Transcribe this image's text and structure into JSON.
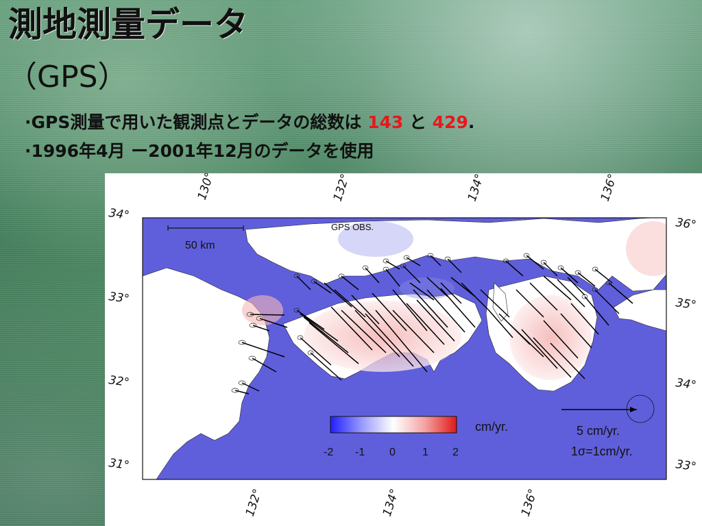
{
  "slide": {
    "title": "測地測量データ",
    "subtitle": "（GPS）",
    "bullet1": {
      "prefix": "·GPS測量で用いた観測点とデータの総数は ",
      "num1": "143",
      "mid": " と ",
      "num2": "429",
      "suffix": "."
    },
    "bullet2": "·1996年4月 ー2001年12月のデータを使用"
  },
  "map": {
    "label": "GPS OBS.",
    "scale_bar": "50 km",
    "top_lon_ticks": [
      "130°",
      "132°",
      "134°",
      "136°"
    ],
    "bottom_lon_ticks": [
      "132°",
      "134°",
      "136°"
    ],
    "left_lat_ticks": [
      "34°",
      "33°",
      "32°",
      "31°"
    ],
    "right_lat_ticks": [
      "36°",
      "35°",
      "34°",
      "33°"
    ],
    "colorbar": {
      "unit": "cm/yr.",
      "ticks": [
        "-2",
        "-1",
        "0",
        "1",
        "2"
      ],
      "range": [
        -2,
        2
      ]
    },
    "legend": {
      "arrow_label": "5 cm/yr.",
      "sigma_label": "1σ=1cm/yr."
    },
    "colors": {
      "sea": "#5f5fdc",
      "land": "#ffffff",
      "uplift": "#e85a5a",
      "subsidence": "#3333ff",
      "accent": "#e8171b"
    }
  }
}
